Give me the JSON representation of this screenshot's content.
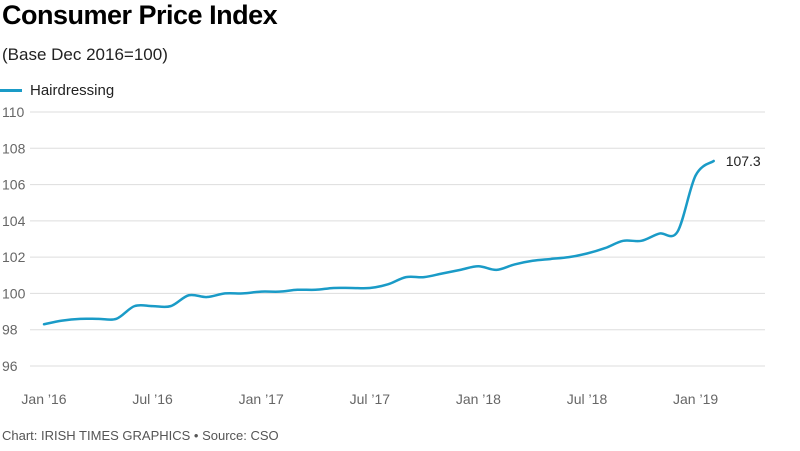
{
  "title": "Consumer Price Index",
  "subtitle": "(Base Dec 2016=100)",
  "footer": "Chart: IRISH TIMES GRAPHICS • Source: CSO",
  "colors": {
    "series": "#1a9bc7",
    "grid": "#dddddd",
    "axis_text": "#666666"
  },
  "chart_data": {
    "type": "line",
    "title": "Consumer Price Index",
    "subtitle": "(Base Dec 2016=100)",
    "xlabel": "",
    "ylabel": "",
    "ylim": [
      96,
      110
    ],
    "yticks": [
      96,
      98,
      100,
      102,
      104,
      106,
      108,
      110
    ],
    "xticks": [
      {
        "label": "Jan ’16",
        "month": "2016-01"
      },
      {
        "label": "Jul ’16",
        "month": "2016-07"
      },
      {
        "label": "Jan ’17",
        "month": "2017-01"
      },
      {
        "label": "Jul ’17",
        "month": "2017-07"
      },
      {
        "label": "Jan ’18",
        "month": "2018-01"
      },
      {
        "label": "Jul ’18",
        "month": "2018-07"
      },
      {
        "label": "Jan ’19",
        "month": "2019-01"
      }
    ],
    "grid": true,
    "legend": "top-left",
    "end_label": "107.3",
    "series": [
      {
        "name": "Hairdressing",
        "color": "#1a9bc7",
        "x": [
          "2016-01",
          "2016-02",
          "2016-03",
          "2016-04",
          "2016-05",
          "2016-06",
          "2016-07",
          "2016-08",
          "2016-09",
          "2016-10",
          "2016-11",
          "2016-12",
          "2017-01",
          "2017-02",
          "2017-03",
          "2017-04",
          "2017-05",
          "2017-06",
          "2017-07",
          "2017-08",
          "2017-09",
          "2017-10",
          "2017-11",
          "2017-12",
          "2018-01",
          "2018-02",
          "2018-03",
          "2018-04",
          "2018-05",
          "2018-06",
          "2018-07",
          "2018-08",
          "2018-09",
          "2018-10",
          "2018-11",
          "2018-12",
          "2019-01",
          "2019-02"
        ],
        "values": [
          98.3,
          98.5,
          98.6,
          98.6,
          98.6,
          99.3,
          99.3,
          99.3,
          99.9,
          99.8,
          100.0,
          100.0,
          100.1,
          100.1,
          100.2,
          100.2,
          100.3,
          100.3,
          100.3,
          100.5,
          100.9,
          100.9,
          101.1,
          101.3,
          101.5,
          101.3,
          101.6,
          101.8,
          101.9,
          102.0,
          102.2,
          102.5,
          102.9,
          102.9,
          103.3,
          103.4,
          106.5,
          107.3
        ]
      }
    ]
  }
}
